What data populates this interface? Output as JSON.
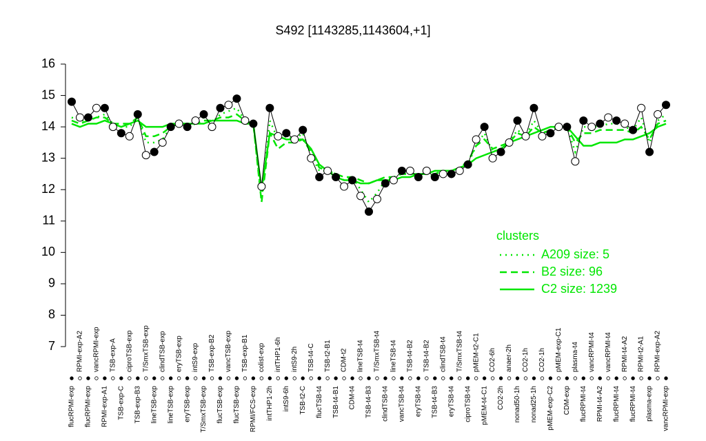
{
  "chart_data": {
    "type": "line",
    "title": "S492 [1143285,1143604,+1]",
    "categories": [
      "flucRPMI-exp",
      "RPMI-exp-A2",
      "flucRPMI-exp",
      "vancRPMI-exp",
      "RPMI-exp-A1",
      "TSB-exp-A",
      "TSB-exp-C",
      "ciproTSB-exp",
      "TSB-exp-B3",
      "T/SmxTSB-exp",
      "lineTSB-exp",
      "clindTSB-exp",
      "lineTSB-exp",
      "eryTSB-exp",
      "eryTSB-exp",
      "intS9-exp",
      "T/SmxTSB-exp",
      "TSB-exp-B2",
      "flucTSB-exp",
      "vancTSB-exp",
      "flucTSB-exp",
      "TSB-exp-B1",
      "RPMI/FCS-exp",
      "colist-exp",
      "intTHP1-2h",
      "intTHP1-6h",
      "intS9-6h",
      "intS9-2h",
      "TSB-t2-C",
      "TSB-t4-C",
      "flucTSB-t4",
      "TSB-t2-B1",
      "TSB-t4-B1",
      "CDM-t2",
      "CDM-t4",
      "lineTSB-t4",
      "TSB-t4-B3",
      "T/SmxTSB-t4",
      "clindTSB-t4",
      "lineTSB-t4",
      "vancTSB-t4",
      "TSB-t4-B2",
      "eryTSB-t4",
      "TSB-t4-B2",
      "TSB-t4-B3",
      "clindTSB-t4",
      "eryTSB-t4",
      "T/SmxTSB-t4",
      "ciproTSB-t4",
      "pMEM-t2-C1",
      "pMEM-t4-C1",
      "CO2-6h",
      "CO2-2h",
      "anaer-2h",
      "nonad50-1h",
      "CO2-1h",
      "nonad25-1h",
      "CO2-1h",
      "pMEM-exp-C2",
      "pMEM-exp-C1",
      "CDM-exp",
      "plasma-t4",
      "flucRPMI-t4",
      "vancRPMI-t4",
      "RPMI-t4-A2",
      "vancRPMI-t4",
      "flucRPMI-t4",
      "RPMI-t4-A2",
      "flucRPMI-t4",
      "RPMI-t2-A1",
      "plasma-exp",
      "RPMI-exp-A2",
      "vancRPMI-exp"
    ],
    "values": [
      14.8,
      14.3,
      14.3,
      14.6,
      14.6,
      14.0,
      13.8,
      13.7,
      14.4,
      13.1,
      13.2,
      13.5,
      14.0,
      14.1,
      14.0,
      14.2,
      14.4,
      14.0,
      14.6,
      14.7,
      14.9,
      14.2,
      14.1,
      12.1,
      14.6,
      13.7,
      13.8,
      13.6,
      13.9,
      13.0,
      12.4,
      12.6,
      12.4,
      12.1,
      12.3,
      11.8,
      11.3,
      11.7,
      12.2,
      12.3,
      12.6,
      12.6,
      12.4,
      12.6,
      12.4,
      12.5,
      12.5,
      12.6,
      12.8,
      13.6,
      14.0,
      13.0,
      13.2,
      13.5,
      14.2,
      13.7,
      14.6,
      13.7,
      13.8,
      14.0,
      14.0,
      12.9,
      14.2,
      14.0,
      14.1,
      14.3,
      14.2,
      14.1,
      13.9,
      14.6,
      13.2,
      14.4,
      14.7
    ],
    "point_colors": [
      "#000000",
      "#ffffff",
      "#000000",
      "#ffffff",
      "#000000",
      "#ffffff",
      "#000000",
      "#ffffff",
      "#000000",
      "#ffffff",
      "#000000",
      "#ffffff",
      "#000000",
      "#ffffff",
      "#000000",
      "#ffffff",
      "#000000",
      "#ffffff",
      "#000000",
      "#ffffff",
      "#000000",
      "#ffffff",
      "#000000",
      "#ffffff",
      "#000000",
      "#ffffff",
      "#000000",
      "#ffffff",
      "#000000",
      "#ffffff",
      "#000000",
      "#ffffff",
      "#000000",
      "#ffffff",
      "#000000",
      "#ffffff",
      "#000000",
      "#ffffff",
      "#000000",
      "#ffffff",
      "#000000",
      "#ffffff",
      "#000000",
      "#ffffff",
      "#000000",
      "#ffffff",
      "#000000",
      "#ffffff",
      "#000000",
      "#ffffff",
      "#000000",
      "#ffffff",
      "#000000",
      "#ffffff",
      "#000000",
      "#ffffff",
      "#000000",
      "#ffffff",
      "#000000",
      "#ffffff",
      "#000000",
      "#ffffff",
      "#000000",
      "#ffffff",
      "#000000",
      "#ffffff",
      "#000000",
      "#ffffff",
      "#000000",
      "#ffffff",
      "#000000",
      "#ffffff",
      "#000000"
    ],
    "legend_title": "clusters",
    "series": [
      {
        "name": "A209 size: 5",
        "color": "#00e600",
        "dash": "dotted",
        "values": [
          14.3,
          14.2,
          14.2,
          14.3,
          14.4,
          14.1,
          14.0,
          14.0,
          14.3,
          13.5,
          13.5,
          13.6,
          14.0,
          14.1,
          14.0,
          14.1,
          14.3,
          14.1,
          14.4,
          14.5,
          14.6,
          14.2,
          14.1,
          11.7,
          14.2,
          13.6,
          13.7,
          13.6,
          13.8,
          13.1,
          12.6,
          12.6,
          12.5,
          12.3,
          12.4,
          12.0,
          11.6,
          11.9,
          12.3,
          12.4,
          12.5,
          12.5,
          12.4,
          12.5,
          12.4,
          12.5,
          12.5,
          12.6,
          12.8,
          13.4,
          13.8,
          13.2,
          13.3,
          13.5,
          13.9,
          13.7,
          14.2,
          13.8,
          13.9,
          14.0,
          14.0,
          13.2,
          14.0,
          14.0,
          14.0,
          14.1,
          14.1,
          14.0,
          13.9,
          14.3,
          13.5,
          14.2,
          14.4
        ]
      },
      {
        "name": "B2 size: 96",
        "color": "#00e600",
        "dash": "dashed",
        "values": [
          14.2,
          14.1,
          14.2,
          14.3,
          14.3,
          14.1,
          14.1,
          14.1,
          14.3,
          13.7,
          13.7,
          13.8,
          14.0,
          14.1,
          14.1,
          14.1,
          14.2,
          14.2,
          14.3,
          14.3,
          14.4,
          14.2,
          14.1,
          11.6,
          13.8,
          13.3,
          13.5,
          13.5,
          13.6,
          13.2,
          12.7,
          12.6,
          12.5,
          12.4,
          12.4,
          12.3,
          12.2,
          12.3,
          12.4,
          12.4,
          12.5,
          12.5,
          12.5,
          12.5,
          12.5,
          12.6,
          12.6,
          12.7,
          12.9,
          13.4,
          13.6,
          13.3,
          13.4,
          13.5,
          13.8,
          13.7,
          14.0,
          13.8,
          13.9,
          14.0,
          14.0,
          13.5,
          13.8,
          13.8,
          13.9,
          13.9,
          13.9,
          13.9,
          13.8,
          14.0,
          13.6,
          14.1,
          14.2
        ]
      },
      {
        "name": "C2 size: 1239",
        "color": "#00e600",
        "dash": "solid",
        "values": [
          14.1,
          14.0,
          14.1,
          14.1,
          14.2,
          14.1,
          14.0,
          14.1,
          14.2,
          14.0,
          14.0,
          14.0,
          14.1,
          14.1,
          14.1,
          14.1,
          14.1,
          14.2,
          14.2,
          14.2,
          14.2,
          14.1,
          14.1,
          12.0,
          13.8,
          13.7,
          13.6,
          13.6,
          13.6,
          13.3,
          12.8,
          12.6,
          12.4,
          12.3,
          12.3,
          12.2,
          12.2,
          12.3,
          12.3,
          12.3,
          12.4,
          12.4,
          12.5,
          12.5,
          12.6,
          12.6,
          12.6,
          12.7,
          12.8,
          13.0,
          13.1,
          13.2,
          13.3,
          13.5,
          13.6,
          13.7,
          13.8,
          13.9,
          14.0,
          14.0,
          14.0,
          13.7,
          13.4,
          13.4,
          13.5,
          13.5,
          13.5,
          13.6,
          13.6,
          13.7,
          13.8,
          14.0,
          14.1
        ]
      }
    ],
    "ylim": [
      7,
      16
    ],
    "yticks": [
      7,
      8,
      9,
      10,
      11,
      12,
      13,
      14,
      15,
      16
    ],
    "grid": false
  }
}
